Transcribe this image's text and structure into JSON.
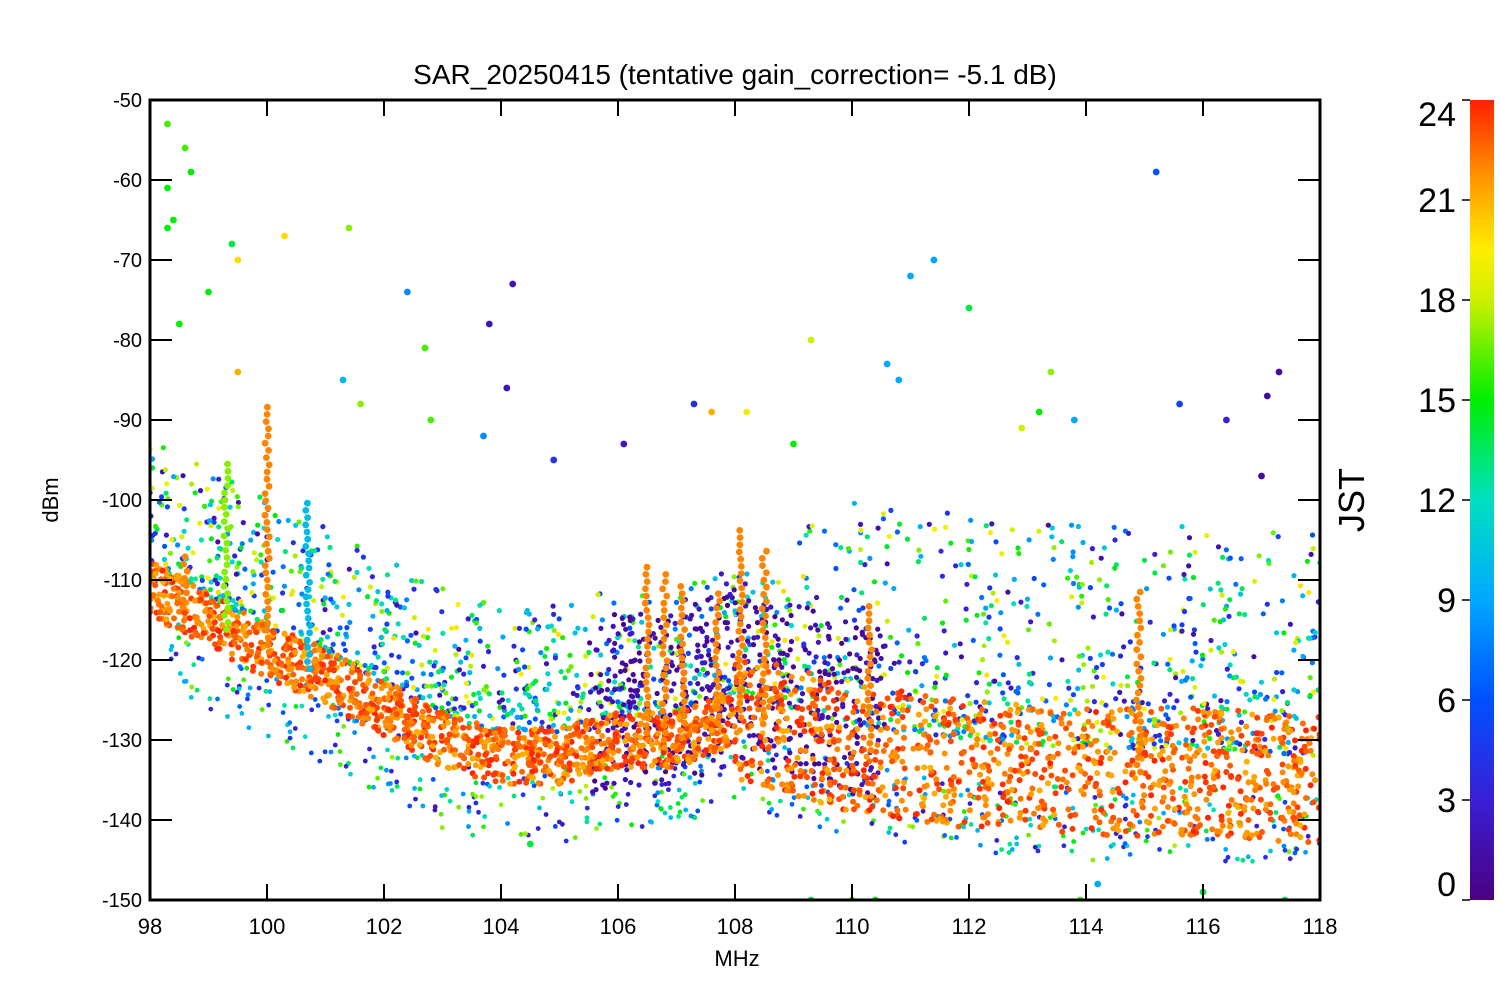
{
  "chart_data": {
    "type": "scatter",
    "title": "SAR_20250415 (tentative gain_correction= -5.1 dB)",
    "xlabel": "MHz",
    "ylabel": "dBm",
    "xlim": [
      98,
      118
    ],
    "ylim": [
      -150,
      -50
    ],
    "xticks": [
      98,
      100,
      102,
      104,
      106,
      108,
      110,
      112,
      114,
      116,
      118
    ],
    "yticks": [
      -50,
      -60,
      -70,
      -80,
      -90,
      -100,
      -110,
      -120,
      -130,
      -140,
      -150
    ],
    "grid": false,
    "colorbar": {
      "label": "JST",
      "range": [
        0,
        24
      ],
      "ticks": [
        24,
        21,
        18,
        15,
        12,
        9,
        6,
        3,
        0
      ],
      "colormap": "rainbow"
    },
    "baseline": [
      [
        98,
        -111
      ],
      [
        99,
        -115
      ],
      [
        100,
        -119
      ],
      [
        101,
        -122
      ],
      [
        102,
        -126
      ],
      [
        103,
        -130
      ],
      [
        104,
        -132
      ],
      [
        105,
        -132
      ],
      [
        106,
        -130
      ],
      [
        107,
        -130
      ],
      [
        108,
        -127
      ],
      [
        109,
        -129
      ],
      [
        110,
        -131
      ],
      [
        112,
        -133
      ],
      [
        114,
        -134
      ],
      [
        116,
        -134
      ],
      [
        118,
        -135
      ]
    ],
    "peaks": [
      {
        "x": 100.0,
        "y": -88,
        "jst": 22
      },
      {
        "x": 98.6,
        "y": -107,
        "jst": 22
      },
      {
        "x": 106.5,
        "y": -108,
        "jst": 22
      },
      {
        "x": 106.8,
        "y": -109,
        "jst": 22
      },
      {
        "x": 107.1,
        "y": -110,
        "jst": 22
      },
      {
        "x": 107.7,
        "y": -111,
        "jst": 22
      },
      {
        "x": 108.1,
        "y": -103,
        "jst": 22
      },
      {
        "x": 108.5,
        "y": -106,
        "jst": 22
      },
      {
        "x": 110.3,
        "y": -113,
        "jst": 22
      },
      {
        "x": 114.9,
        "y": -111,
        "jst": 22
      },
      {
        "x": 99.3,
        "y": -95,
        "jst": 17
      },
      {
        "x": 100.7,
        "y": -100,
        "jst": 10
      }
    ],
    "outliers": [
      {
        "x": 98.3,
        "y": -53,
        "jst": 16
      },
      {
        "x": 98.3,
        "y": -61,
        "jst": 15
      },
      {
        "x": 98.3,
        "y": -66,
        "jst": 15
      },
      {
        "x": 98.6,
        "y": -56,
        "jst": 16
      },
      {
        "x": 98.7,
        "y": -59,
        "jst": 15
      },
      {
        "x": 98.4,
        "y": -65,
        "jst": 15
      },
      {
        "x": 99.4,
        "y": -68,
        "jst": 14
      },
      {
        "x": 99.5,
        "y": -70,
        "jst": 20
      },
      {
        "x": 100.3,
        "y": -67,
        "jst": 20
      },
      {
        "x": 101.4,
        "y": -66,
        "jst": 17
      },
      {
        "x": 102.4,
        "y": -74,
        "jst": 8
      },
      {
        "x": 103.8,
        "y": -78,
        "jst": 2
      },
      {
        "x": 104.2,
        "y": -73,
        "jst": 2
      },
      {
        "x": 104.1,
        "y": -86,
        "jst": 2
      },
      {
        "x": 99.0,
        "y": -74,
        "jst": 15
      },
      {
        "x": 98.5,
        "y": -78,
        "jst": 15
      },
      {
        "x": 102.7,
        "y": -81,
        "jst": 16
      },
      {
        "x": 101.3,
        "y": -85,
        "jst": 10
      },
      {
        "x": 99.5,
        "y": -84,
        "jst": 21
      },
      {
        "x": 101.6,
        "y": -88,
        "jst": 17
      },
      {
        "x": 102.8,
        "y": -90,
        "jst": 16
      },
      {
        "x": 103.7,
        "y": -92,
        "jst": 8
      },
      {
        "x": 104.9,
        "y": -95,
        "jst": 4
      },
      {
        "x": 106.1,
        "y": -93,
        "jst": 2
      },
      {
        "x": 107.3,
        "y": -88,
        "jst": 4
      },
      {
        "x": 107.6,
        "y": -89,
        "jst": 21
      },
      {
        "x": 108.2,
        "y": -89,
        "jst": 19
      },
      {
        "x": 109.3,
        "y": -80,
        "jst": 18
      },
      {
        "x": 109.0,
        "y": -93,
        "jst": 15
      },
      {
        "x": 110.6,
        "y": -83,
        "jst": 9
      },
      {
        "x": 110.8,
        "y": -85,
        "jst": 9
      },
      {
        "x": 111.0,
        "y": -72,
        "jst": 9
      },
      {
        "x": 111.4,
        "y": -70,
        "jst": 9
      },
      {
        "x": 112.0,
        "y": -76,
        "jst": 14
      },
      {
        "x": 113.4,
        "y": -84,
        "jst": 17
      },
      {
        "x": 112.9,
        "y": -91,
        "jst": 18
      },
      {
        "x": 113.2,
        "y": -89,
        "jst": 15
      },
      {
        "x": 113.8,
        "y": -90,
        "jst": 9
      },
      {
        "x": 115.2,
        "y": -59,
        "jst": 6
      },
      {
        "x": 115.6,
        "y": -88,
        "jst": 5
      },
      {
        "x": 116.4,
        "y": -90,
        "jst": 3
      },
      {
        "x": 117.1,
        "y": -87,
        "jst": 1
      },
      {
        "x": 117.3,
        "y": -84,
        "jst": 1
      },
      {
        "x": 117.0,
        "y": -97,
        "jst": 1
      },
      {
        "x": 110.4,
        "y": -150,
        "jst": 15
      },
      {
        "x": 110.0,
        "y": -150,
        "jst": 17
      },
      {
        "x": 109.3,
        "y": -150,
        "jst": 14
      },
      {
        "x": 104.5,
        "y": -143,
        "jst": 14
      },
      {
        "x": 113.9,
        "y": -150,
        "jst": 16
      },
      {
        "x": 117.4,
        "y": -150,
        "jst": 14
      },
      {
        "x": 116.0,
        "y": -149,
        "jst": 14
      },
      {
        "x": 114.2,
        "y": -148,
        "jst": 9
      }
    ]
  }
}
